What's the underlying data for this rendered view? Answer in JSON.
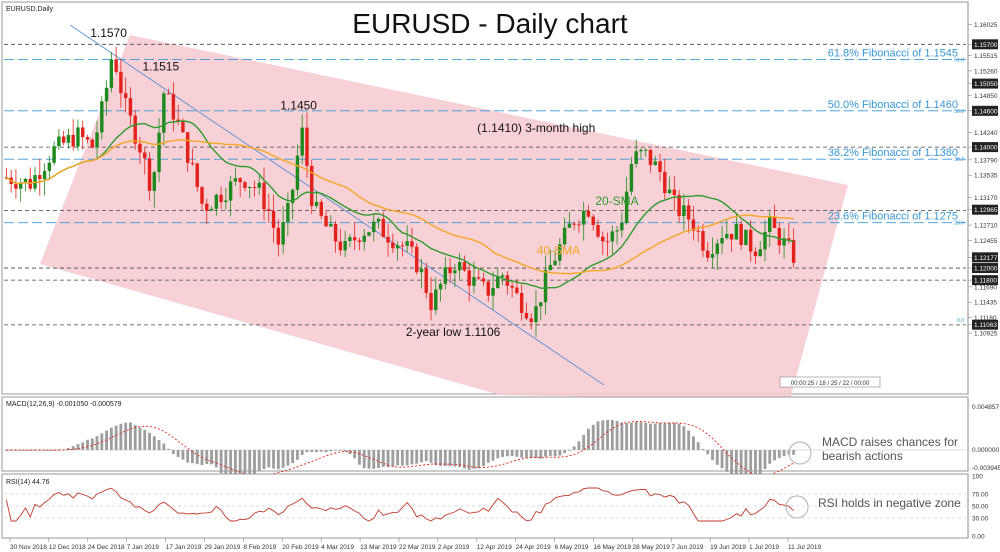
{
  "chart_data": {
    "type": "candlestick",
    "title": "EURUSD - Daily chart",
    "symbol_label": "EURUSD,Daily",
    "price_axis": {
      "min": 1.0995,
      "max": 1.1635,
      "ticks": [
        "1.16025",
        "1.15700",
        "1.15515",
        "1.15260",
        "1.15050",
        "1.14850",
        "1.14600",
        "1.14240",
        "1.14000",
        "1.13790",
        "1.13535",
        "1.13170",
        "1.12965",
        "1.12710",
        "1.12455",
        "1.12177",
        "1.12000",
        "1.11800",
        "1.11690",
        "1.11435",
        "1.11180",
        "1.11063",
        "1.10925"
      ],
      "tick_values": [
        1.16025,
        1.157,
        1.15515,
        1.1526,
        1.1505,
        1.1485,
        1.146,
        1.1424,
        1.14,
        1.1379,
        1.13535,
        1.1317,
        1.12965,
        1.1271,
        1.12455,
        1.12177,
        1.12,
        1.118,
        1.1169,
        1.11435,
        1.1118,
        1.11063,
        1.10925
      ],
      "highlighted_ticks": [
        "1.15700",
        "1.15050",
        "1.14600",
        "1.14000",
        "1.12965",
        "1.12177",
        "1.12000",
        "1.11800",
        "1.11063"
      ]
    },
    "x_labels": [
      "30 Nov 2018",
      "12 Dec 2018",
      "24 Dec 2018",
      "7 Jan 2019",
      "17 Jan 2019",
      "29 Jan 2019",
      "8 Feb 2019",
      "20 Feb 2019",
      "4 Mar 2019",
      "13 Mar 2019",
      "22 Mar 2019",
      "2 Apr 2019",
      "12 Apr 2019",
      "24 Apr 2019",
      "6 May 2019",
      "16 May 2019",
      "28 May 2019",
      "7 Jun 2019",
      "19 Jun 2019",
      "1 Jul 2019",
      "11 Jul 2019"
    ],
    "fibonacci_levels": [
      {
        "label": "61.8% Fibonacci of 1.1545",
        "value": 1.1545,
        "tag": "61.8"
      },
      {
        "label": "50.0% Fibonacci of 1.1460",
        "value": 1.146,
        "tag": "50.0"
      },
      {
        "label": "38.2% Fibonacci of 1.1380",
        "value": 1.138,
        "tag": "38.2"
      },
      {
        "label": "23.6% Fibonacci of 1.1275",
        "value": 1.1275,
        "tag": "23.6"
      }
    ],
    "horizontal_levels": [
      1.157,
      1.14,
      1.1295,
      1.12,
      1.118,
      1.1106
    ],
    "level_zero_tag": "0.0",
    "annotations": [
      {
        "text": "1.1570",
        "x": 0.132,
        "y": 1.1582
      },
      {
        "text": "1.1515",
        "x": 0.198,
        "y": 1.1527
      },
      {
        "text": "1.1450",
        "x": 0.372,
        "y": 1.1462
      },
      {
        "text": "(1.1410) 3-month high",
        "x": 0.672,
        "y": 1.1425
      },
      {
        "text": "2-year low 1.1106",
        "x": 0.567,
        "y": 1.1088
      },
      {
        "text": "20-SMA",
        "x": 0.774,
        "y": 1.1304
      },
      {
        "text": "40-SMA",
        "x": 0.7,
        "y": 1.1222
      }
    ],
    "ohlc_sample": [
      {
        "date": "30 Nov 2018",
        "close": 1.135
      },
      {
        "date": "7 Jan 2019",
        "close": 1.148
      },
      {
        "date": "10 Jan 2019",
        "high": 1.157
      },
      {
        "date": "31 Jan 2019",
        "high": 1.1515
      },
      {
        "date": "19 Mar 2019",
        "high": 1.145
      },
      {
        "date": "1 May 2019",
        "low": 1.1106
      },
      {
        "date": "25 Jun 2019",
        "high": 1.141
      },
      {
        "date": "16 Jul 2019",
        "close": 1.1218
      }
    ],
    "period_box_text": "00:00:25 / 18 / 25 / 22 / 00:00"
  },
  "macd": {
    "label": "MACD(12,26,9) -0.001050 -0.000579",
    "ticks": [
      "0.004857",
      "0.000000",
      "-0.003945"
    ],
    "annotation_line1": "MACD raises chances for",
    "annotation_line2": "bearish actions"
  },
  "rsi": {
    "label": "RSI(14) 44.76",
    "ticks": [
      "100",
      "70.00",
      "50.00",
      "30.00",
      "0.00"
    ],
    "annotation": "RSI holds in negative zone"
  },
  "colors": {
    "bull": "#1e8a1e",
    "bear": "#e3221b",
    "channel": "#f7c9cf",
    "sma20": "#2e9b2e",
    "sma40": "#f5a623",
    "fib": "#3a97d5",
    "trend": "#5b8fd8",
    "annot_circle": "#bdbdbd"
  }
}
